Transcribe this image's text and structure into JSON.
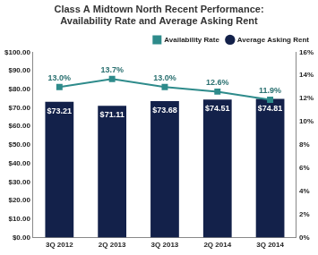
{
  "chart_data": {
    "type": "bar",
    "title": [
      "Class A Midtown North Recent Performance:",
      "Availability Rate and Average Asking Rent"
    ],
    "categories": [
      "3Q 2012",
      "2Q 2013",
      "3Q 2013",
      "2Q 2014",
      "3Q 2014"
    ],
    "series": [
      {
        "name": "Average Asking Rent",
        "type": "bar",
        "color": "#13214a",
        "values": [
          73.21,
          71.11,
          73.68,
          74.51,
          74.81
        ],
        "value_labels": [
          "$73.21",
          "$71.11",
          "$73.68",
          "$74.51",
          "$74.81"
        ]
      },
      {
        "name": "Availability Rate",
        "type": "line",
        "color": "#2e8b8b",
        "axis": "y2",
        "marker": "square",
        "values": [
          13.0,
          13.7,
          13.0,
          12.6,
          11.9
        ],
        "value_labels": [
          "13.0%",
          "13.7%",
          "13.0%",
          "12.6%",
          "11.9%"
        ]
      }
    ],
    "ylim": [
      0,
      100
    ],
    "yticks": [
      {
        "value": 0,
        "label": "$0.00"
      },
      {
        "value": 10,
        "label": "$10.00"
      },
      {
        "value": 20,
        "label": "$20.00"
      },
      {
        "value": 30,
        "label": "$30.00"
      },
      {
        "value": 40,
        "label": "$40.00"
      },
      {
        "value": 50,
        "label": "$50.00"
      },
      {
        "value": 60,
        "label": "$60.00"
      },
      {
        "value": 70,
        "label": "$70.00"
      },
      {
        "value": 80,
        "label": "$80.00"
      },
      {
        "value": 90,
        "label": "$90.00"
      },
      {
        "value": 100,
        "label": "$100.00"
      }
    ],
    "y2lim": [
      0,
      16
    ],
    "y2ticks": [
      {
        "value": 0,
        "label": "0%"
      },
      {
        "value": 2,
        "label": "2%"
      },
      {
        "value": 4,
        "label": "4%"
      },
      {
        "value": 6,
        "label": "6%"
      },
      {
        "value": 8,
        "label": "8%"
      },
      {
        "value": 10,
        "label": "10%"
      },
      {
        "value": 12,
        "label": "12%"
      },
      {
        "value": 14,
        "label": "14%"
      },
      {
        "value": 16,
        "label": "16%"
      }
    ],
    "grid": false,
    "legend": "upper right",
    "data_labels": true
  }
}
